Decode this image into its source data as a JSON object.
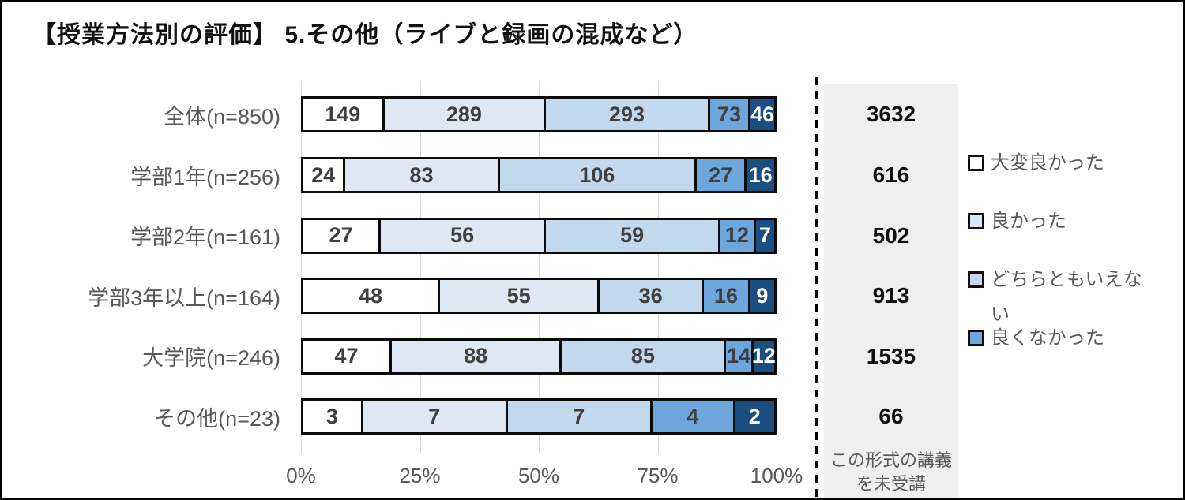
{
  "title": "【授業方法別の評価】 5.その他（ライブと録画の混成など）",
  "colors": {
    "grid": "#d9d9d9",
    "segment_border": "#0b0b0b",
    "panel_bg": "#efefef",
    "label_gray": "#595959",
    "value_dark": "#3f3f3f",
    "value_white": "#ffffff"
  },
  "chart_data": {
    "type": "bar",
    "subtype": "horizontal-100pct-stacked",
    "title": "【授業方法別の評価】 5.その他（ライブと録画の混成など）",
    "categories": [
      "全体(n=850)",
      "学部1年(n=256)",
      "学部2年(n=161)",
      "学部3年以上(n=164)",
      "大学院(n=246)",
      "その他(n=23)"
    ],
    "series": [
      {
        "name": "大変良かった",
        "color": "#ffffff",
        "text_color": "#3f3f3f",
        "values": [
          149,
          24,
          27,
          48,
          47,
          3
        ]
      },
      {
        "name": "良かった",
        "color": "#dde8f4",
        "text_color": "#3f3f3f",
        "values": [
          289,
          83,
          56,
          55,
          88,
          7
        ]
      },
      {
        "name": "どちらともいえない",
        "color": "#c2d8ec",
        "text_color": "#3f3f3f",
        "values": [
          293,
          106,
          59,
          36,
          85,
          7
        ]
      },
      {
        "name": "良くなかった",
        "color": "#6ca6dc",
        "text_color": "#3f3f3f",
        "values": [
          73,
          27,
          12,
          16,
          14,
          4
        ]
      },
      {
        "name": "",
        "color": "#1a4e80",
        "text_color": "#ffffff",
        "values": [
          46,
          16,
          7,
          9,
          12,
          2
        ]
      }
    ],
    "legend": [
      {
        "label": "大変良かった",
        "color": "#ffffff"
      },
      {
        "label": "良かった",
        "color": "#dde8f4"
      },
      {
        "label": "どちらともいえない",
        "color": "#c2d8ec"
      },
      {
        "label": "良くなかった",
        "color": "#6ca6dc"
      }
    ],
    "legend_position": "right",
    "x_ticks": [
      "0%",
      "25%",
      "50%",
      "75%",
      "100%"
    ],
    "xlim": [
      0,
      100
    ],
    "grid": true,
    "not_attended_panel": {
      "label": "この形式の講義を未受講",
      "values": [
        3632,
        616,
        502,
        913,
        1535,
        66
      ]
    }
  }
}
